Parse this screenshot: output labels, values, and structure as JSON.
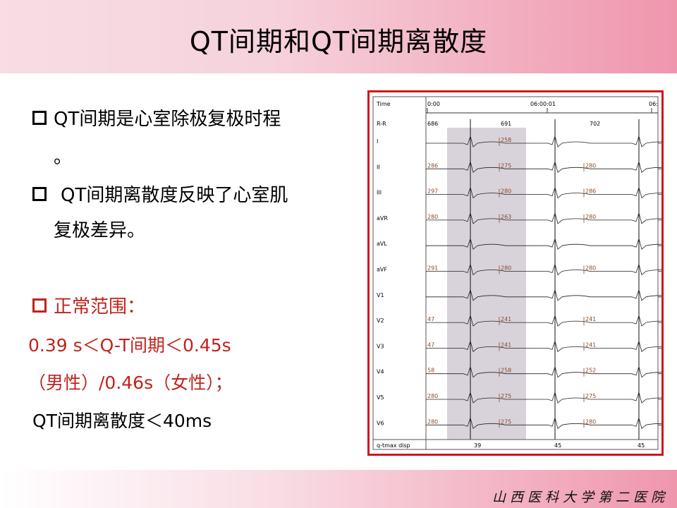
{
  "slide": {
    "title": "QT间期和QT间期离散度",
    "footer": "山西医科大学第二医院"
  },
  "content": {
    "bullet1_line1": "QT间期是心室除极复极时程",
    "bullet1_line2": "。",
    "bullet2_line1": "QT间期离散度反映了心室肌",
    "bullet2_line2": "复极差异。",
    "normal_heading": "正常范围：",
    "normal_line1": "0.39 s＜Q-T间期＜0.45s",
    "normal_line2": "（男性）/0.46s（女性）；",
    "normal_line3": "QT间期离散度＜40ms"
  },
  "ecg": {
    "time_label": "Time",
    "time_start": "0:00",
    "time_mid": "06:00:01",
    "time_end": "06:",
    "rr_label": "R-R",
    "rr_values": [
      "686",
      "691",
      "702"
    ],
    "leads": [
      {
        "name": "I",
        "values": [
          "",
          "258",
          ""
        ]
      },
      {
        "name": "II",
        "values": [
          "286",
          "275",
          "280"
        ]
      },
      {
        "name": "III",
        "values": [
          "297",
          "280",
          "286"
        ]
      },
      {
        "name": "aVR",
        "values": [
          "280",
          "263",
          "280"
        ]
      },
      {
        "name": "aVL",
        "values": [
          "",
          "",
          ""
        ]
      },
      {
        "name": "aVF",
        "values": [
          "291",
          "280",
          "280"
        ]
      },
      {
        "name": "V1",
        "values": [
          "",
          "",
          ""
        ]
      },
      {
        "name": "V2",
        "values": [
          "47",
          "241",
          "241"
        ]
      },
      {
        "name": "V3",
        "values": [
          "47",
          "241",
          "241"
        ]
      },
      {
        "name": "V4",
        "values": [
          "58",
          "258",
          "252"
        ]
      },
      {
        "name": "V5",
        "values": [
          "280",
          "275",
          "275"
        ]
      },
      {
        "name": "V6",
        "values": [
          "280",
          "275",
          "280"
        ]
      }
    ],
    "disp_label": "q-tmax disp",
    "disp_values": [
      "39",
      "45",
      "45"
    ]
  }
}
